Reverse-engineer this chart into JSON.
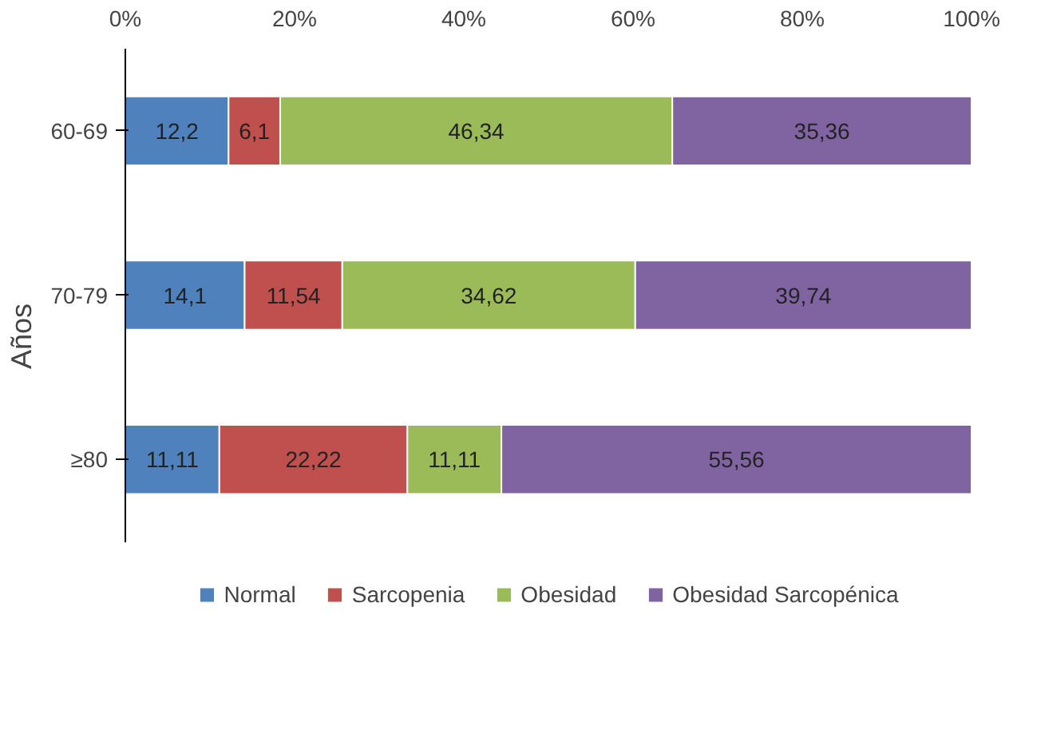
{
  "chart_data": {
    "type": "bar",
    "orientation": "horizontal",
    "stacked": true,
    "ylabel": "Años",
    "categories": [
      "60-69",
      "70-79",
      "≥80"
    ],
    "series": [
      {
        "name": "Normal",
        "color": "#4f81bd",
        "values": [
          12.2,
          14.1,
          11.11
        ],
        "value_labels": [
          "12,2",
          "14,1",
          "11,11"
        ]
      },
      {
        "name": "Sarcopenia",
        "color": "#c0504d",
        "values": [
          6.1,
          11.54,
          22.22
        ],
        "value_labels": [
          "6,1",
          "11,54",
          "22,22"
        ]
      },
      {
        "name": "Obesidad",
        "color": "#9bbb59",
        "values": [
          46.34,
          34.62,
          11.11
        ],
        "value_labels": [
          "46,34",
          "34,62",
          "11,11"
        ]
      },
      {
        "name": "Obesidad Sarcopénica",
        "color": "#8064a2",
        "values": [
          35.36,
          39.74,
          55.56
        ],
        "value_labels": [
          "35,36",
          "39,74",
          "55,56"
        ]
      }
    ],
    "xlim": [
      0,
      100
    ],
    "xticks": [
      {
        "value": 0,
        "label": "0%"
      },
      {
        "value": 20,
        "label": "20%"
      },
      {
        "value": 40,
        "label": "40%"
      },
      {
        "value": 60,
        "label": "60%"
      },
      {
        "value": 80,
        "label": "80%"
      },
      {
        "value": 100,
        "label": "100%"
      }
    ],
    "grid": false,
    "legend": "bottom"
  }
}
